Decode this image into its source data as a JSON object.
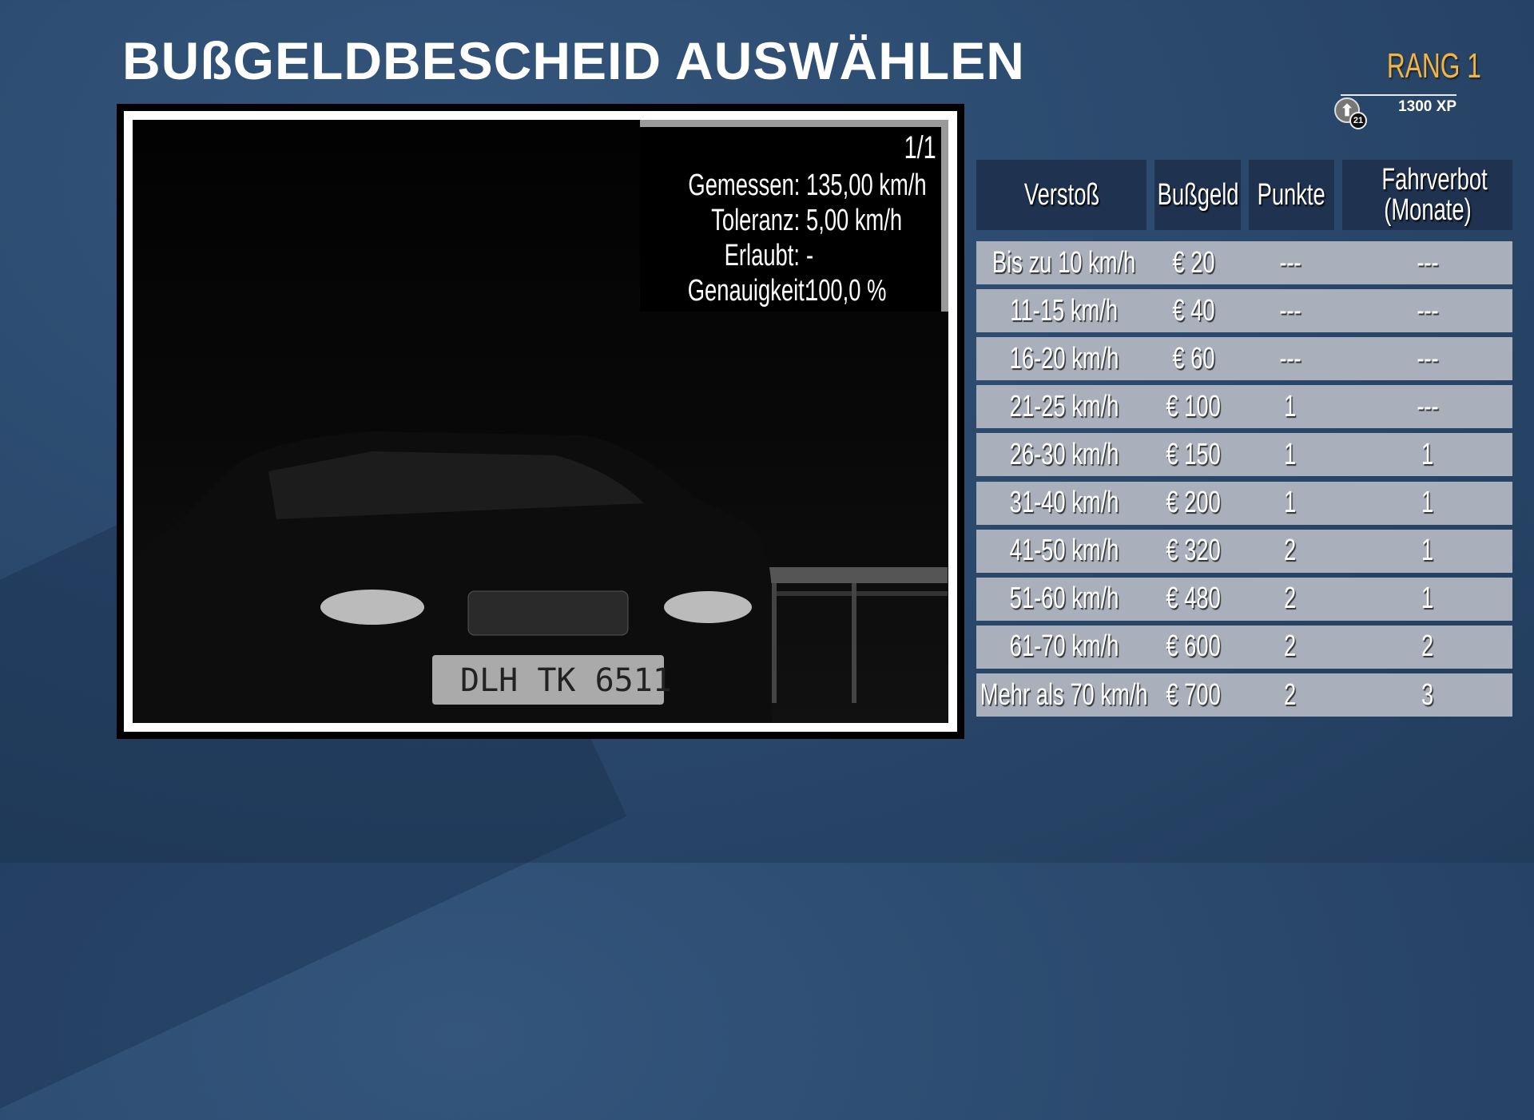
{
  "title": "BUßGELDBESCHEID AUSWÄHLEN",
  "rank": {
    "label": "RANG 1",
    "xp": "1300 XP",
    "badge": "21",
    "icon": "rank-up-arrow-icon",
    "color": "#f3b441"
  },
  "photo": {
    "counter": "1/1",
    "plate": "DLH TK 6511",
    "lines": [
      {
        "label": "Gemessen:",
        "value": "135,00 km/h"
      },
      {
        "label": "Toleranz:",
        "value": "5,00 km/h"
      },
      {
        "label": "Erlaubt:",
        "value": "-"
      },
      {
        "label": "Genauigkeit:",
        "value": "100,0 %"
      }
    ]
  },
  "table": {
    "headers": [
      "Verstoß",
      "Bußgeld",
      "Punkte",
      "Fahrverbot (Monate)"
    ],
    "rows": [
      [
        "Bis zu 10 km/h",
        "€ 20",
        "---",
        "---"
      ],
      [
        "11-15 km/h",
        "€ 40",
        "---",
        "---"
      ],
      [
        "16-20 km/h",
        "€ 60",
        "---",
        "---"
      ],
      [
        "21-25 km/h",
        "€ 100",
        "1",
        "---"
      ],
      [
        "26-30 km/h",
        "€ 150",
        "1",
        "1"
      ],
      [
        "31-40 km/h",
        "€ 200",
        "1",
        "1"
      ],
      [
        "41-50 km/h",
        "€ 320",
        "2",
        "1"
      ],
      [
        "51-60 km/h",
        "€ 480",
        "2",
        "1"
      ],
      [
        "61-70 km/h",
        "€ 600",
        "2",
        "2"
      ],
      [
        "Mehr als 70 km/h",
        "€ 700",
        "2",
        "3"
      ]
    ]
  }
}
